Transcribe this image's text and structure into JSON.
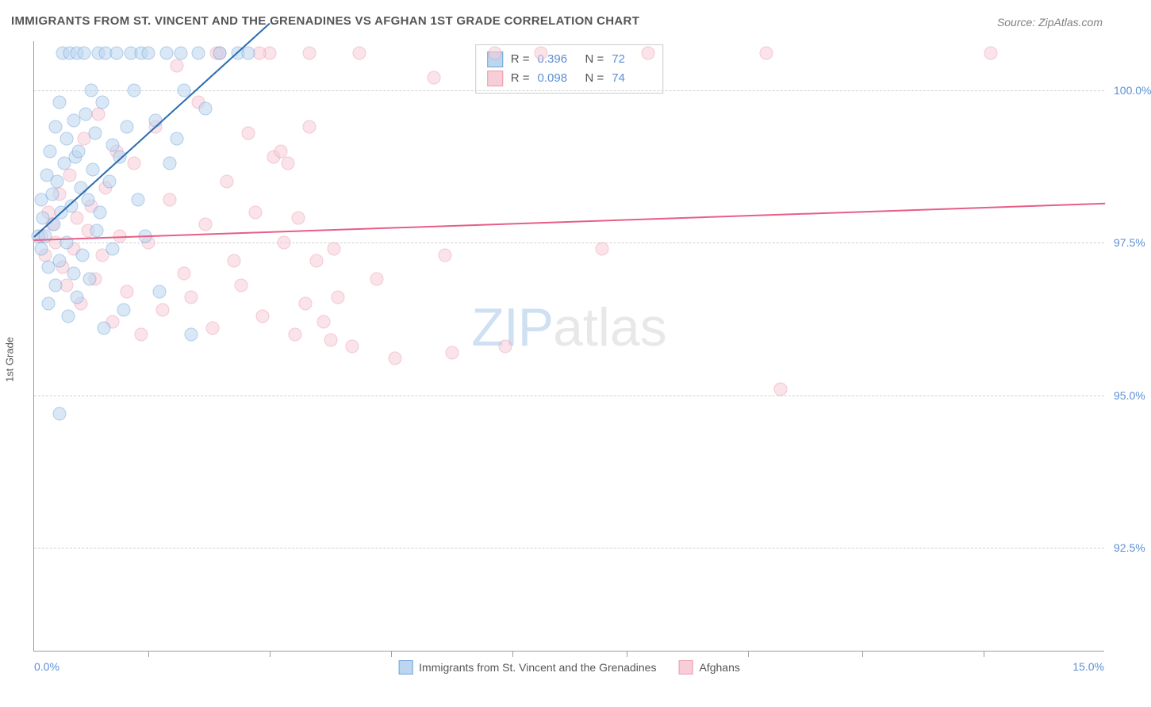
{
  "chart": {
    "type": "scatter",
    "title": "IMMIGRANTS FROM ST. VINCENT AND THE GRENADINES VS AFGHAN 1ST GRADE CORRELATION CHART",
    "source_label": "Source: ZipAtlas.com",
    "y_axis_label": "1st Grade",
    "watermark_zip": "ZIP",
    "watermark_atlas": "atlas",
    "xlim": [
      0.0,
      15.0
    ],
    "ylim": [
      90.8,
      100.8
    ],
    "x_min_label": "0.0%",
    "x_max_label": "15.0%",
    "y_ticks": [
      92.5,
      95.0,
      97.5,
      100.0
    ],
    "y_tick_labels": [
      "92.5%",
      "95.0%",
      "97.5%",
      "100.0%"
    ],
    "x_tick_positions": [
      1.6,
      3.3,
      5.0,
      6.7,
      8.3,
      10.0,
      11.6,
      13.3
    ],
    "grid_color": "#d0d0d0",
    "axis_color": "#9e9e9e",
    "background_color": "#ffffff",
    "tick_label_color": "#5b8fd6",
    "title_color": "#555555",
    "title_fontsize": 15,
    "label_fontsize": 13,
    "tick_fontsize": 14
  },
  "series": {
    "a": {
      "label": "Immigrants from St. Vincent and the Grenadines",
      "fill_color": "#bcd6f0",
      "stroke_color": "#6da3dd",
      "line_color": "#2b6cb0",
      "R_label": "R  =",
      "R_value": "0.396",
      "N_label": "N  =",
      "N_value": "72",
      "marker_radius": 8.5,
      "fill_opacity": 0.55,
      "line_width": 2,
      "trend": {
        "x1": 0.0,
        "y1": 97.6,
        "x2": 3.3,
        "y2": 101.1
      },
      "points": [
        [
          0.05,
          97.6
        ],
        [
          0.1,
          97.4
        ],
        [
          0.1,
          98.2
        ],
        [
          0.12,
          97.9
        ],
        [
          0.15,
          97.6
        ],
        [
          0.18,
          98.6
        ],
        [
          0.2,
          97.1
        ],
        [
          0.2,
          96.5
        ],
        [
          0.22,
          99.0
        ],
        [
          0.25,
          98.3
        ],
        [
          0.28,
          97.8
        ],
        [
          0.3,
          99.4
        ],
        [
          0.3,
          96.8
        ],
        [
          0.32,
          98.5
        ],
        [
          0.35,
          97.2
        ],
        [
          0.35,
          99.8
        ],
        [
          0.38,
          98.0
        ],
        [
          0.4,
          100.6
        ],
        [
          0.42,
          98.8
        ],
        [
          0.45,
          97.5
        ],
        [
          0.45,
          99.2
        ],
        [
          0.48,
          96.3
        ],
        [
          0.5,
          100.6
        ],
        [
          0.52,
          98.1
        ],
        [
          0.55,
          99.5
        ],
        [
          0.55,
          97.0
        ],
        [
          0.58,
          98.9
        ],
        [
          0.6,
          100.6
        ],
        [
          0.6,
          96.6
        ],
        [
          0.62,
          99.0
        ],
        [
          0.65,
          98.4
        ],
        [
          0.68,
          97.3
        ],
        [
          0.7,
          100.6
        ],
        [
          0.72,
          99.6
        ],
        [
          0.75,
          98.2
        ],
        [
          0.78,
          96.9
        ],
        [
          0.8,
          100.0
        ],
        [
          0.82,
          98.7
        ],
        [
          0.85,
          99.3
        ],
        [
          0.88,
          97.7
        ],
        [
          0.9,
          100.6
        ],
        [
          0.92,
          98.0
        ],
        [
          0.95,
          99.8
        ],
        [
          0.98,
          96.1
        ],
        [
          1.0,
          100.6
        ],
        [
          1.05,
          98.5
        ],
        [
          1.1,
          99.1
        ],
        [
          1.1,
          97.4
        ],
        [
          1.15,
          100.6
        ],
        [
          1.2,
          98.9
        ],
        [
          1.25,
          96.4
        ],
        [
          1.3,
          99.4
        ],
        [
          1.35,
          100.6
        ],
        [
          1.4,
          100.0
        ],
        [
          1.45,
          98.2
        ],
        [
          1.5,
          100.6
        ],
        [
          1.55,
          97.6
        ],
        [
          1.6,
          100.6
        ],
        [
          1.7,
          99.5
        ],
        [
          1.75,
          96.7
        ],
        [
          1.85,
          100.6
        ],
        [
          1.9,
          98.8
        ],
        [
          2.0,
          99.2
        ],
        [
          2.05,
          100.6
        ],
        [
          2.1,
          100.0
        ],
        [
          2.2,
          96.0
        ],
        [
          2.3,
          100.6
        ],
        [
          2.4,
          99.7
        ],
        [
          2.6,
          100.6
        ],
        [
          2.85,
          100.6
        ],
        [
          3.0,
          100.6
        ],
        [
          0.35,
          94.7
        ]
      ]
    },
    "b": {
      "label": "Afghans",
      "fill_color": "#f7cdd8",
      "stroke_color": "#ec9bb0",
      "line_color": "#e75e85",
      "R_label": "R  =",
      "R_value": "0.098",
      "N_label": "N  =",
      "N_value": "74",
      "marker_radius": 8.5,
      "fill_opacity": 0.55,
      "line_width": 2,
      "trend": {
        "x1": 0.0,
        "y1": 97.55,
        "x2": 15.0,
        "y2": 98.15
      },
      "points": [
        [
          0.1,
          97.6
        ],
        [
          0.15,
          97.3
        ],
        [
          0.2,
          98.0
        ],
        [
          0.25,
          97.8
        ],
        [
          0.3,
          97.5
        ],
        [
          0.35,
          98.3
        ],
        [
          0.4,
          97.1
        ],
        [
          0.45,
          96.8
        ],
        [
          0.5,
          98.6
        ],
        [
          0.55,
          97.4
        ],
        [
          0.6,
          97.9
        ],
        [
          0.65,
          96.5
        ],
        [
          0.7,
          99.2
        ],
        [
          0.75,
          97.7
        ],
        [
          0.8,
          98.1
        ],
        [
          0.85,
          96.9
        ],
        [
          0.9,
          99.6
        ],
        [
          0.95,
          97.3
        ],
        [
          1.0,
          98.4
        ],
        [
          1.1,
          96.2
        ],
        [
          1.15,
          99.0
        ],
        [
          1.2,
          97.6
        ],
        [
          1.3,
          96.7
        ],
        [
          1.4,
          98.8
        ],
        [
          1.5,
          96.0
        ],
        [
          1.6,
          97.5
        ],
        [
          1.7,
          99.4
        ],
        [
          1.8,
          96.4
        ],
        [
          1.9,
          98.2
        ],
        [
          2.0,
          100.4
        ],
        [
          2.1,
          97.0
        ],
        [
          2.2,
          96.6
        ],
        [
          2.3,
          99.8
        ],
        [
          2.4,
          97.8
        ],
        [
          2.5,
          96.1
        ],
        [
          2.6,
          100.6
        ],
        [
          2.7,
          98.5
        ],
        [
          2.8,
          97.2
        ],
        [
          2.9,
          96.8
        ],
        [
          3.0,
          99.3
        ],
        [
          3.1,
          98.0
        ],
        [
          3.2,
          96.3
        ],
        [
          3.3,
          100.6
        ],
        [
          3.35,
          98.9
        ],
        [
          3.45,
          99.0
        ],
        [
          3.5,
          97.5
        ],
        [
          3.55,
          98.8
        ],
        [
          3.65,
          96.0
        ],
        [
          3.7,
          97.9
        ],
        [
          3.8,
          96.5
        ],
        [
          3.85,
          99.4
        ],
        [
          3.95,
          97.2
        ],
        [
          4.05,
          96.2
        ],
        [
          4.15,
          95.9
        ],
        [
          4.2,
          97.4
        ],
        [
          4.25,
          96.6
        ],
        [
          4.45,
          95.8
        ],
        [
          4.55,
          100.6
        ],
        [
          4.8,
          96.9
        ],
        [
          5.05,
          95.6
        ],
        [
          5.6,
          100.2
        ],
        [
          5.75,
          97.3
        ],
        [
          5.85,
          95.7
        ],
        [
          6.45,
          100.6
        ],
        [
          6.6,
          95.8
        ],
        [
          7.1,
          100.6
        ],
        [
          7.95,
          97.4
        ],
        [
          8.6,
          100.6
        ],
        [
          10.25,
          100.6
        ],
        [
          10.45,
          95.1
        ],
        [
          13.4,
          100.6
        ],
        [
          2.55,
          100.6
        ],
        [
          3.15,
          100.6
        ],
        [
          3.85,
          100.6
        ]
      ]
    }
  },
  "bottom_legend": {
    "items": [
      {
        "key": "a"
      },
      {
        "key": "b"
      }
    ]
  }
}
